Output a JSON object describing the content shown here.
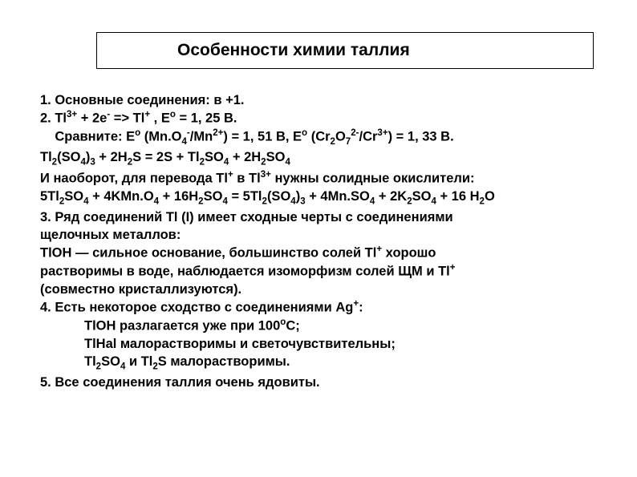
{
  "title": "Особенности химии таллия",
  "lines": {
    "l1": "1. Основные соединения: в +1.",
    "l2_pre": "2. Tl",
    "l2_sup1": "3+",
    "l2_mid1": " + 2e",
    "l2_sup2": "-",
    "l2_mid2": " => Tl",
    "l2_sup3": "+",
    "l2_mid3": " , E",
    "l2_sup4": "o",
    "l2_end": " = 1, 25 B.",
    "l3_pre": "    Сравните: E",
    "l3_sup1": "o",
    "l3_mid1": " (Mn.O",
    "l3_sub1": "4",
    "l3_sup2": "-",
    "l3_mid2": "/Mn",
    "l3_sup3": "2+",
    "l3_mid3": ") = 1, 51 B, E",
    "l3_sup4": "o",
    "l3_mid4": " (Cr",
    "l3_sub2": "2",
    "l3_mid5": "O",
    "l3_sub3": "7",
    "l3_sup5": "2-",
    "l3_mid6": "/Cr",
    "l3_sup6": "3+",
    "l3_end": ") = 1, 33 B.",
    "l4_pre": "Tl",
    "l4_sub1": "2",
    "l4_mid1": "(SO",
    "l4_sub2": "4",
    "l4_mid2": ")",
    "l4_sub3": "3",
    "l4_mid3": " + 2H",
    "l4_sub4": "2",
    "l4_mid4": "S = 2S + Tl",
    "l4_sub5": "2",
    "l4_mid5": "SO",
    "l4_sub6": "4",
    "l4_mid6": " + 2H",
    "l4_sub7": "2",
    "l4_mid7": "SO",
    "l4_sub8": "4",
    "l5_pre": "И наоборот, для перевода Tl",
    "l5_sup1": "+",
    "l5_mid1": " в Tl",
    "l5_sup2": "3+",
    "l5_end": " нужны солидные окислители:",
    "l6_pre": "5Tl",
    "l6_sub1": "2",
    "l6_mid1": "SO",
    "l6_sub2": "4",
    "l6_mid2": " + 4KMn.O",
    "l6_sub3": "4",
    "l6_mid3": " + 16H",
    "l6_sub4": "2",
    "l6_mid4": "SO",
    "l6_sub5": "4",
    "l6_mid5": " = 5Tl",
    "l6_sub6": "2",
    "l6_mid6": "(SO",
    "l6_sub7": "4",
    "l6_mid7": ")",
    "l6_sub8": "3",
    "l6_mid8": " + 4Mn.SO",
    "l6_sub9": "4",
    "l6_mid9": " + 2K",
    "l6_sub10": "2",
    "l6_mid10": "SO",
    "l6_sub11": "4",
    "l6_mid11": " + 16 H",
    "l6_sub12": "2",
    "l6_end": "O",
    "l7": "3. Ряд соединений Tl (I) имеет сходные черты с соединениями",
    "l8": "щелочных металлов:",
    "l9_pre": "TlOH — сильное основание, большинство солей Tl",
    "l9_sup1": "+",
    "l9_end": " хорошо",
    "l10_pre": "растворимы в воде, наблюдается изоморфизм солей ЩМ и Tl",
    "l10_sup1": "+",
    "l11": "(совместно кристаллизуются).",
    "l12_pre": "4. Есть некоторое сходство с соединениями Ag",
    "l12_sup1": "+",
    "l12_end": ":",
    "l13_pre": "TlOH разлагается уже при 100",
    "l13_sup1": "o",
    "l13_end": "C;",
    "l14": "TlHal малорастворимы и светочувствительны;",
    "l15_pre": "Tl",
    "l15_sub1": "2",
    "l15_mid1": "SO",
    "l15_sub2": "4",
    "l15_mid2": " и Tl",
    "l15_sub3": "2",
    "l15_end": "S малорастворимы.",
    "l16": "5. Все соединения таллия очень ядовиты."
  }
}
